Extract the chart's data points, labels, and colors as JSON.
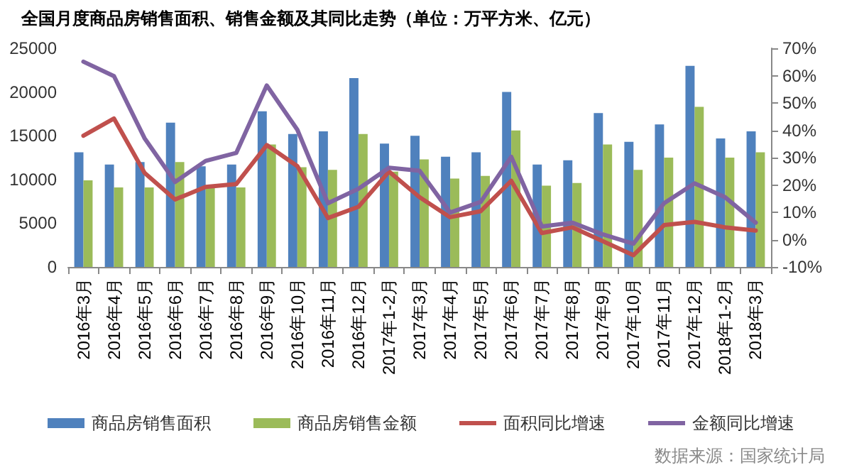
{
  "chart_data": {
    "type": "bar",
    "title": "全国月度商品房销售面积、销售金额及其同比走势（单位：万平方米、亿元）",
    "categories": [
      "2016年3月",
      "2016年4月",
      "2016年5月",
      "2016年6月",
      "2016年7月",
      "2016年8月",
      "2016年9月",
      "2016年10月",
      "2016年11月",
      "2016年12月",
      "2017年1-2月",
      "2017年3月",
      "2017年4月",
      "2017年5月",
      "2017年6月",
      "2017年7月",
      "2017年8月",
      "2017年9月",
      "2017年10月",
      "2017年11月",
      "2017年12月",
      "2018年1-2月",
      "2018年3月"
    ],
    "series": [
      {
        "name": "商品房销售面积",
        "color": "#4f81bd",
        "values": [
          13100,
          11700,
          12000,
          16500,
          11500,
          11700,
          17800,
          15200,
          15500,
          21600,
          14100,
          15000,
          12600,
          13100,
          20000,
          11700,
          12200,
          17600,
          14300,
          16300,
          23000,
          14700,
          15500
        ]
      },
      {
        "name": "商品房销售金额",
        "color": "#9bbb59",
        "values": [
          9900,
          9100,
          9100,
          12000,
          9200,
          9100,
          14000,
          11400,
          11100,
          15200,
          10900,
          12300,
          10100,
          10400,
          15600,
          9300,
          9600,
          14000,
          11100,
          12500,
          18300,
          12500,
          13100
        ]
      },
      {
        "name": "面积同比增速",
        "type": "line",
        "axis": "y2",
        "color": "#c0504d",
        "values": [
          38.0,
          44.3,
          24.4,
          14.7,
          19.3,
          20.3,
          34.6,
          26.9,
          7.9,
          12.0,
          24.9,
          15.5,
          8.2,
          10.4,
          21.5,
          2.4,
          4.5,
          -0.6,
          -5.7,
          5.3,
          6.5,
          4.5,
          3.3
        ]
      },
      {
        "name": "金额同比增速",
        "type": "line",
        "axis": "y2",
        "color": "#8064a2",
        "values": [
          65.1,
          59.8,
          37.1,
          21.1,
          28.8,
          31.7,
          56.4,
          40.2,
          13.3,
          18.6,
          26.3,
          25.2,
          9.9,
          13.8,
          30.3,
          4.8,
          6.2,
          1.9,
          -1.5,
          13.3,
          20.6,
          15.5,
          6.2
        ]
      }
    ],
    "ylim": [
      0,
      25000
    ],
    "yticks": [
      0,
      5000,
      10000,
      15000,
      20000,
      25000
    ],
    "y2lim": [
      -10,
      70
    ],
    "y2ticks": [
      {
        "value": -10,
        "label": "-10%"
      },
      {
        "value": 0,
        "label": "0%"
      },
      {
        "value": 10,
        "label": "10%"
      },
      {
        "value": 20,
        "label": "20%"
      },
      {
        "value": 30,
        "label": "30%"
      },
      {
        "value": 40,
        "label": "40%"
      },
      {
        "value": 50,
        "label": "50%"
      },
      {
        "value": 60,
        "label": "60%"
      },
      {
        "value": 70,
        "label": "70%"
      }
    ],
    "grid": false,
    "legend": "bottom",
    "marker": "none",
    "line_style": "solid",
    "annotations": [
      "数据来源：国家统计局"
    ]
  }
}
